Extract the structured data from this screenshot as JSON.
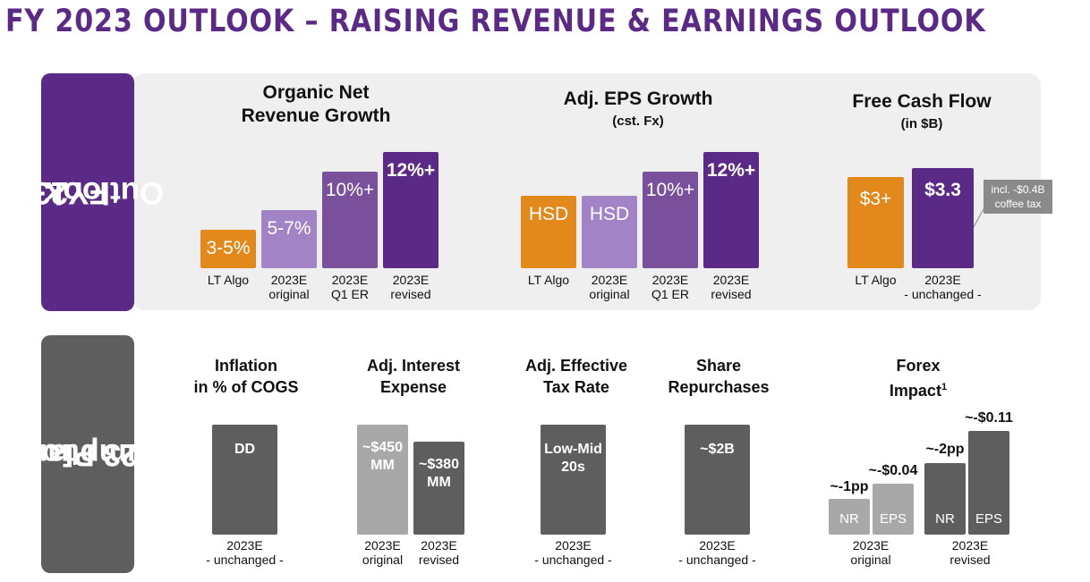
{
  "title": "FY 2023 OUTLOOK – RAISING REVENUE & EARNINGS OUTLOOK",
  "side_tabs": {
    "outlook": [
      "FY23",
      "Outlook"
    ],
    "planning": [
      "FY23 Planning",
      "Assumptions"
    ]
  },
  "colors": {
    "orange": "#e3891c",
    "lavender": "#a284c6",
    "mid_purple": "#7a4f9c",
    "dark_purple": "#5b2a86",
    "dark_gray": "#5e5e5e",
    "light_gray": "#a8a8a8",
    "band": "#efefef"
  },
  "chart_data": [
    {
      "type": "bar",
      "title": "Organic Net Revenue Growth",
      "categories": [
        "LT Algo",
        "2023E original",
        "2023E Q1 ER",
        "2023E revised"
      ],
      "value_labels": [
        "3-5%",
        "5-7%",
        "10%+",
        "12%+"
      ],
      "values": [
        4,
        6,
        10,
        12
      ]
    },
    {
      "type": "bar",
      "title": "Adj. EPS Growth",
      "subtitle": "(cst. Fx)",
      "categories": [
        "LT Algo",
        "2023E original",
        "2023E Q1 ER",
        "2023E revised"
      ],
      "value_labels": [
        "HSD",
        "HSD",
        "10%+",
        "12%+"
      ],
      "values": [
        7.5,
        7.5,
        10,
        12
      ]
    },
    {
      "type": "bar",
      "title": "Free Cash Flow",
      "subtitle": "(in $B)",
      "categories": [
        "LT Algo",
        "2023E - unchanged -"
      ],
      "value_labels": [
        "$3+",
        "$3.3"
      ],
      "values": [
        3,
        3.3
      ],
      "annotation": "incl. -$0.4B coffee tax"
    },
    {
      "type": "bar",
      "title": "Inflation in % of COGS",
      "categories": [
        "2023E - unchanged -"
      ],
      "value_labels": [
        "DD"
      ]
    },
    {
      "type": "bar",
      "title": "Adj. Interest Expense",
      "categories": [
        "2023E original",
        "2023E revised"
      ],
      "value_labels": [
        "~$450 MM",
        "~$380 MM"
      ],
      "values": [
        450,
        380
      ]
    },
    {
      "type": "bar",
      "title": "Adj. Effective Tax Rate",
      "categories": [
        "2023E - unchanged -"
      ],
      "value_labels": [
        "Low-Mid 20s"
      ]
    },
    {
      "type": "bar",
      "title": "Share Repurchases",
      "categories": [
        "2023E - unchanged -"
      ],
      "value_labels": [
        "~$2B"
      ],
      "values": [
        2
      ]
    },
    {
      "type": "bar",
      "title": "Forex Impact",
      "footnote": "1",
      "categories": [
        "2023E original",
        "2023E revised"
      ],
      "series": [
        {
          "name": "NR",
          "value_labels": [
            "~-1pp",
            "~-2pp"
          ],
          "values": [
            -1,
            -2
          ]
        },
        {
          "name": "EPS",
          "value_labels": [
            "~-$0.04",
            "~-$0.11"
          ],
          "values": [
            -0.04,
            -0.11
          ]
        }
      ]
    }
  ],
  "ui": {
    "revenue": {
      "title": "Organic Net\nRevenue Growth",
      "bars": [
        {
          "label": "3-5%",
          "cat": "LT Algo"
        },
        {
          "label": "5-7%",
          "cat": "2023E\noriginal"
        },
        {
          "label": "10%+",
          "cat": "2023E\nQ1 ER"
        },
        {
          "label": "12%+",
          "cat": "2023E\nrevised"
        }
      ]
    },
    "eps": {
      "title": "Adj. EPS Growth",
      "subtitle": "(cst. Fx)",
      "bars": [
        {
          "label": "HSD",
          "cat": "LT Algo"
        },
        {
          "label": "HSD",
          "cat": "2023E\noriginal"
        },
        {
          "label": "10%+",
          "cat": "2023E\nQ1 ER"
        },
        {
          "label": "12%+",
          "cat": "2023E\nrevised"
        }
      ]
    },
    "fcf": {
      "title": "Free Cash Flow",
      "subtitle": "(in $B)",
      "bars": [
        {
          "label": "$3+",
          "cat": "LT Algo"
        },
        {
          "label": "$3.3",
          "cat": "2023E\n- unchanged -"
        }
      ],
      "note": "incl. -$0.4B\ncoffee tax"
    },
    "inflation": {
      "title": "Inflation\nin % of COGS",
      "bar": "DD",
      "cat": "2023E\n- unchanged -"
    },
    "interest": {
      "title": "Adj. Interest\nExpense",
      "bars": [
        {
          "label": "~$450\nMM",
          "cat": "2023E\noriginal"
        },
        {
          "label": "~$380\nMM",
          "cat": "2023E\nrevised"
        }
      ]
    },
    "tax": {
      "title": "Adj. Effective\nTax Rate",
      "bar": "Low-Mid\n20s",
      "cat": "2023E\n- unchanged -"
    },
    "repurchase": {
      "title": "Share\nRepurchases",
      "bar": "~$2B",
      "cat": "2023E\n- unchanged -"
    },
    "forex": {
      "title": "Forex\nImpact",
      "footnote": "1",
      "nr_orig": "~-1pp",
      "eps_orig": "~-$0.04",
      "nr_rev": "~-2pp",
      "eps_rev": "~-$0.11",
      "nr": "NR",
      "eps": "EPS",
      "cat_orig": "2023E\noriginal",
      "cat_rev": "2023E\nrevised"
    }
  }
}
